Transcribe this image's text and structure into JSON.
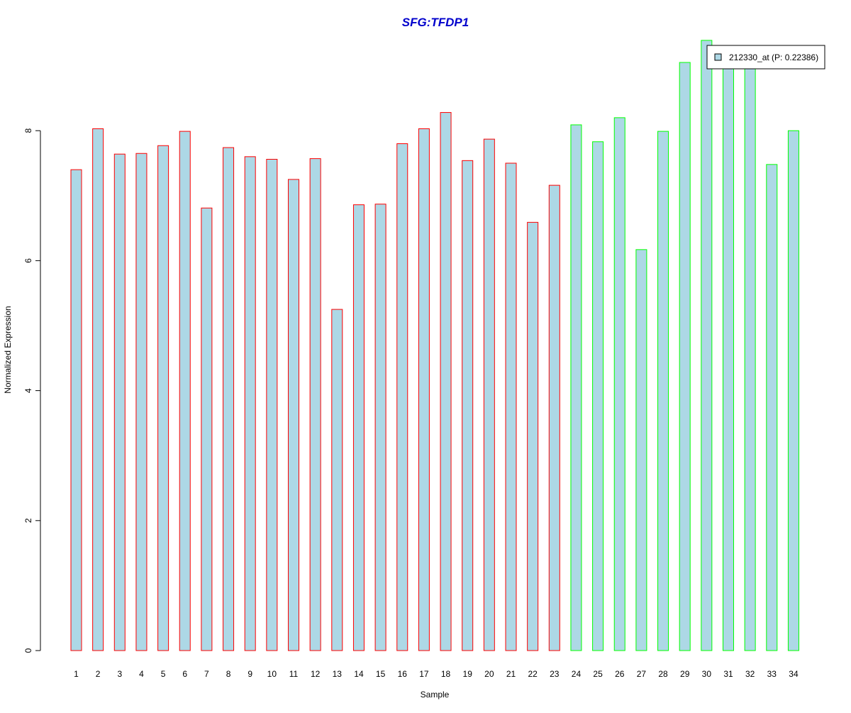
{
  "chart_data": {
    "type": "bar",
    "title": "SFG:TFDP1",
    "xlabel": "Sample",
    "ylabel": "Normalized Expression",
    "ylim": [
      0,
      9.5
    ],
    "yticks": [
      0,
      2,
      4,
      6,
      8
    ],
    "grid": false,
    "legend_position": "top-right",
    "categories": [
      "1",
      "2",
      "3",
      "4",
      "5",
      "6",
      "7",
      "8",
      "9",
      "10",
      "11",
      "12",
      "13",
      "14",
      "15",
      "16",
      "17",
      "18",
      "19",
      "20",
      "21",
      "22",
      "23",
      "24",
      "25",
      "26",
      "27",
      "28",
      "29",
      "30",
      "31",
      "32",
      "33",
      "34"
    ],
    "series": [
      {
        "name": "212330_at (P: 0.22386)",
        "values": [
          7.4,
          8.03,
          7.64,
          7.65,
          7.77,
          7.99,
          6.81,
          7.74,
          7.6,
          7.56,
          7.25,
          7.57,
          5.25,
          6.86,
          6.87,
          7.8,
          8.03,
          8.28,
          7.54,
          7.87,
          7.5,
          6.59,
          7.16,
          8.09,
          7.83,
          8.2,
          6.17,
          7.99,
          9.05,
          9.39,
          9.1,
          9.03,
          7.48,
          8.0
        ]
      }
    ],
    "group_counts": [
      23,
      11
    ],
    "colors": {
      "fill": "#add8e6",
      "group1_border": "#ff0000",
      "group2_border": "#00ff00",
      "title": "#0000cc",
      "axis": "#000000"
    }
  }
}
